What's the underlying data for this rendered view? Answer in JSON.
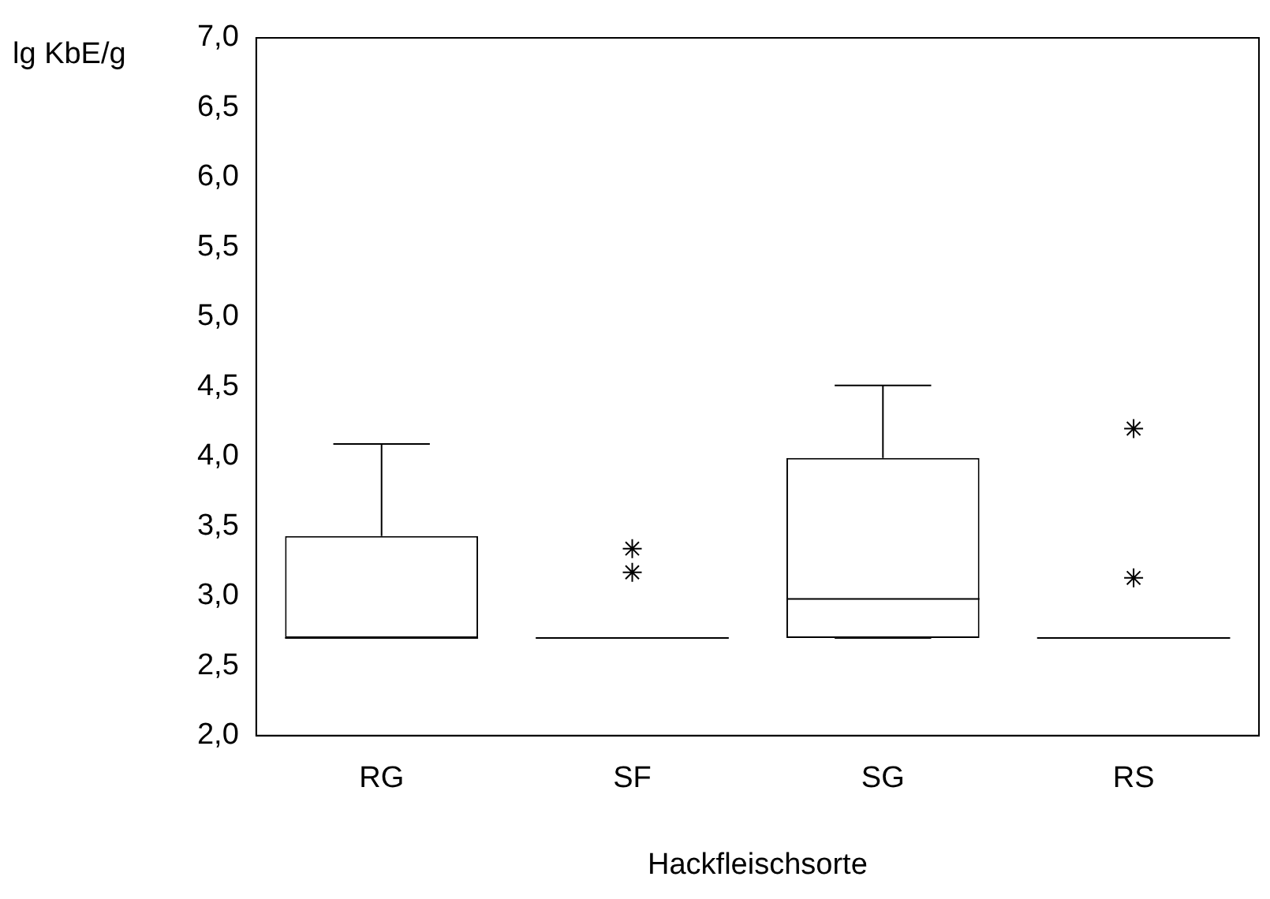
{
  "chart_data": {
    "type": "box",
    "ylabel": "lg KbE/g",
    "xlabel": "Hackfleischsorte",
    "categories": [
      "RG",
      "SF",
      "SG",
      "RS"
    ],
    "boxes": [
      {
        "low": 2.7,
        "q1": 2.7,
        "median": 2.7,
        "q3": 3.43,
        "high": 4.09
      },
      {
        "low": 2.7,
        "q1": 2.7,
        "median": 2.7,
        "q3": 2.7,
        "high": 2.7,
        "outliers": [
          3.34,
          3.17
        ]
      },
      {
        "low": 2.7,
        "q1": 2.7,
        "median": 2.98,
        "q3": 3.99,
        "high": 4.51
      },
      {
        "low": 2.7,
        "q1": 2.7,
        "median": 2.7,
        "q3": 2.7,
        "high": 2.7,
        "outliers": [
          4.2,
          3.13
        ]
      }
    ],
    "marker": "star",
    "ylim": [
      2.0,
      7.0
    ],
    "yticks": [
      {
        "value": 2.0,
        "label": "2,0"
      },
      {
        "value": 2.5,
        "label": "2,5"
      },
      {
        "value": 3.0,
        "label": "3,0"
      },
      {
        "value": 3.5,
        "label": "3,5"
      },
      {
        "value": 4.0,
        "label": "4,0"
      },
      {
        "value": 4.5,
        "label": "4,5"
      },
      {
        "value": 5.0,
        "label": "5,0"
      },
      {
        "value": 5.5,
        "label": "5,5"
      },
      {
        "value": 6.0,
        "label": "6,0"
      },
      {
        "value": 6.5,
        "label": "6,5"
      },
      {
        "value": 7.0,
        "label": "7,0"
      }
    ]
  }
}
